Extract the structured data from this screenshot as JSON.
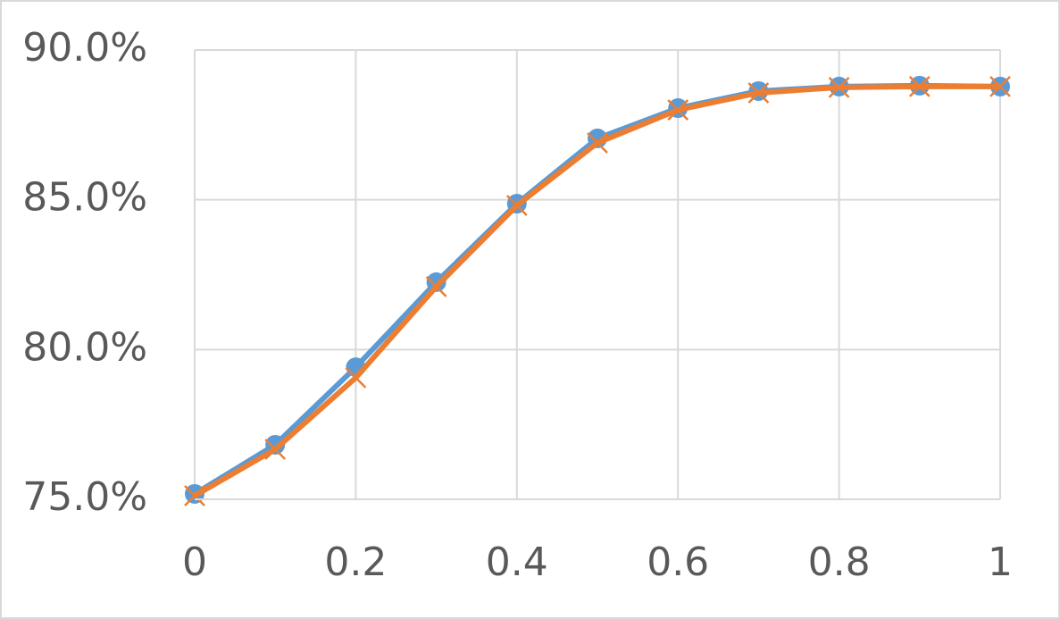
{
  "chart_data": {
    "type": "line",
    "x": [
      0,
      0.1,
      0.2,
      0.3,
      0.4,
      0.5,
      0.6,
      0.7,
      0.8,
      0.9,
      1
    ],
    "series": [
      {
        "color": "#5b9bd5",
        "marker": "circle",
        "values": [
          75.18,
          76.82,
          79.41,
          82.25,
          84.87,
          87.05,
          88.06,
          88.63,
          88.78,
          88.81,
          88.78
        ]
      },
      {
        "color": "#ed7d31",
        "marker": "x",
        "values": [
          75.12,
          76.67,
          79.06,
          82.1,
          84.81,
          86.9,
          88.0,
          88.57,
          88.75,
          88.78,
          88.78
        ]
      }
    ],
    "xlim": [
      0,
      1
    ],
    "xticks": [
      0,
      0.2,
      0.4,
      0.6,
      0.8,
      1
    ],
    "ylim": [
      75,
      90
    ],
    "yticks": [
      {
        "value": 75,
        "label": "75.0%"
      },
      {
        "value": 80,
        "label": "80.0%"
      },
      {
        "value": 85,
        "label": "85.0%"
      },
      {
        "value": 90,
        "label": "90.0%"
      }
    ],
    "grid": true
  }
}
